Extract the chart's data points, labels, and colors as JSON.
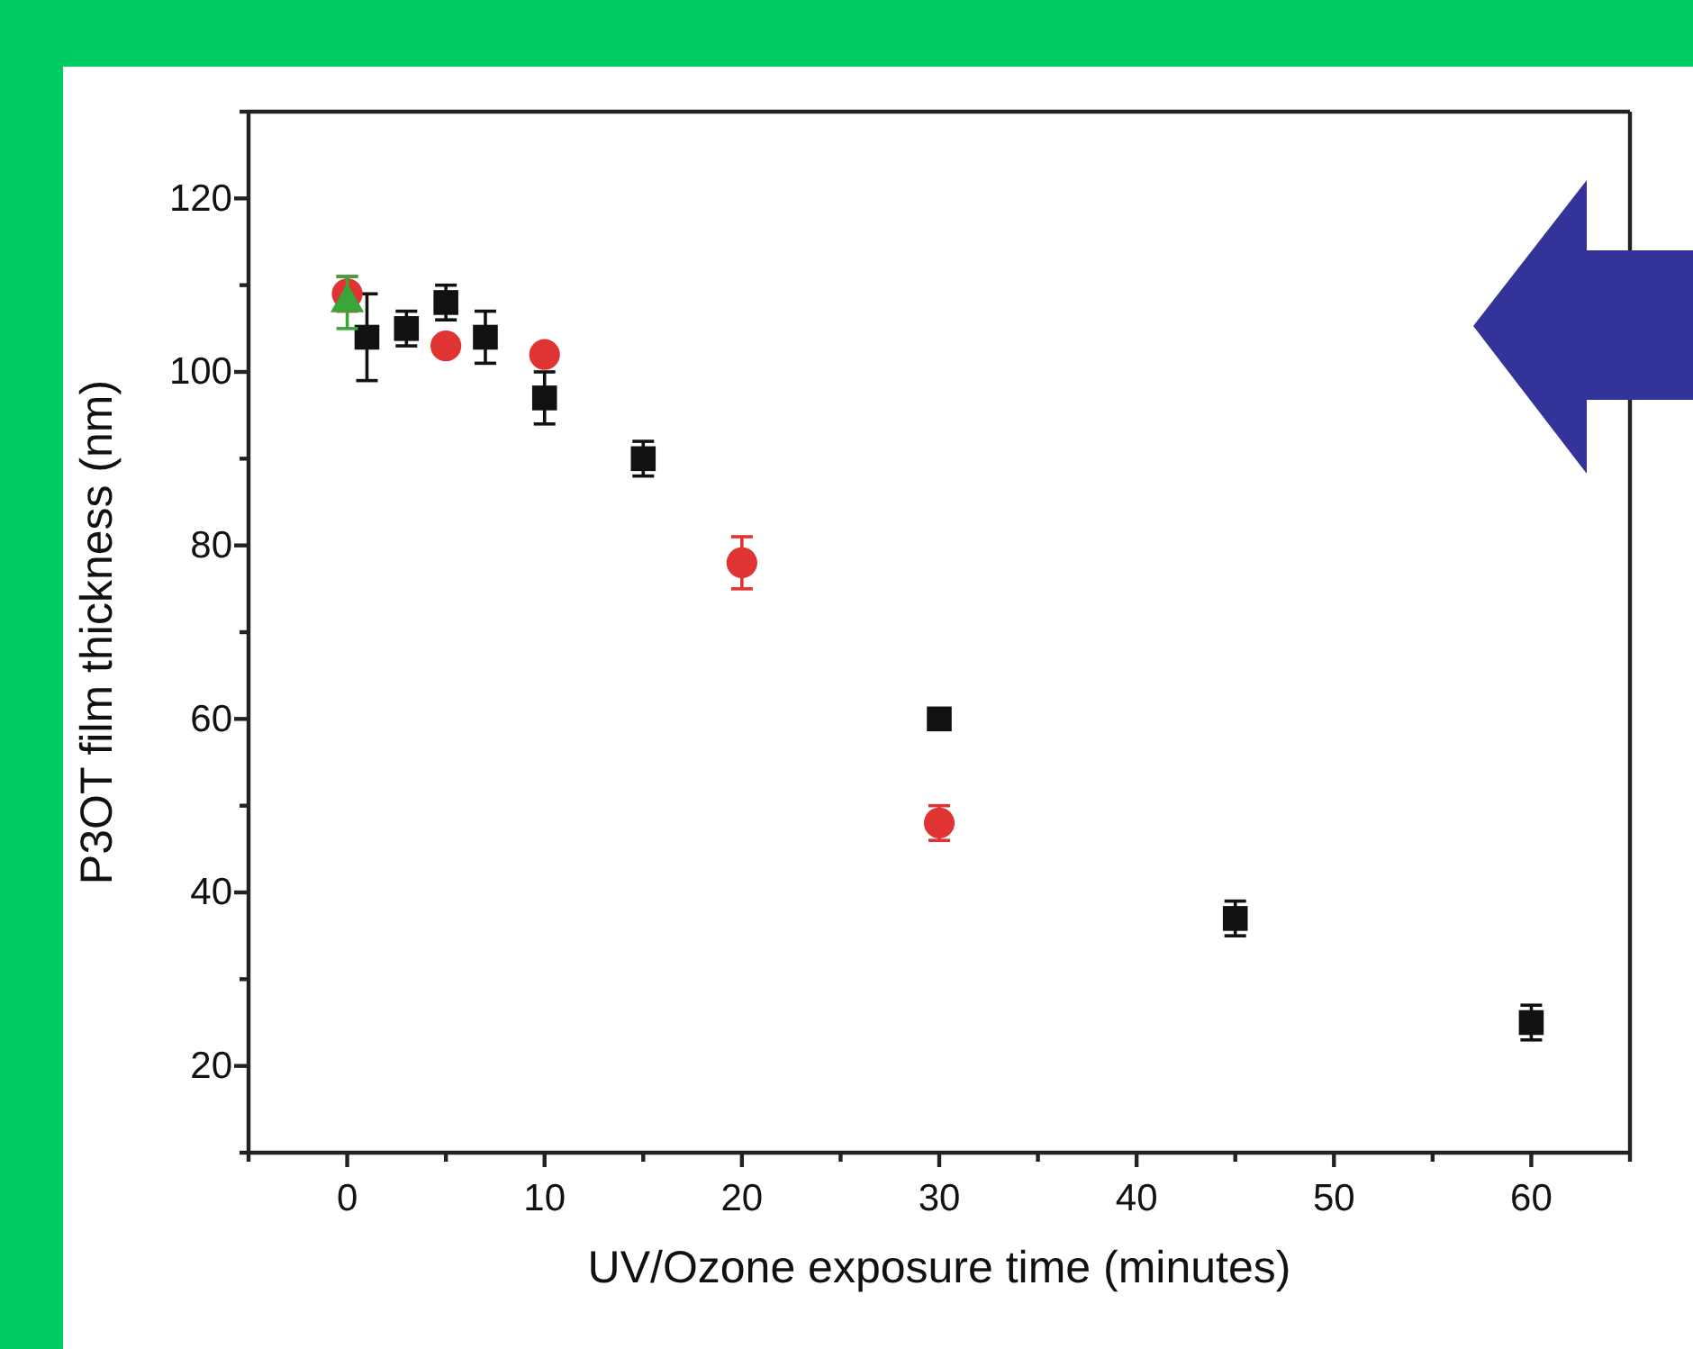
{
  "chart_data": {
    "type": "scatter",
    "xlabel": "UV/Ozone exposure time (minutes)",
    "ylabel": "P3OT film thickness (nm)",
    "xlim": [
      -5,
      65
    ],
    "ylim": [
      10,
      130
    ],
    "xticks": [
      {
        "value": -5,
        "label": null
      },
      0,
      {
        "value": 5,
        "label": null
      },
      10,
      {
        "value": 15,
        "label": null
      },
      20,
      {
        "value": 25,
        "label": null
      },
      30,
      {
        "value": 35,
        "label": null
      },
      40,
      {
        "value": 45,
        "label": null
      },
      50,
      {
        "value": 55,
        "label": null
      },
      60,
      {
        "value": 65,
        "label": null
      }
    ],
    "yticks": [
      {
        "value": 10,
        "label": null
      },
      20,
      {
        "value": 30,
        "label": null
      },
      40,
      {
        "value": 50,
        "label": null
      },
      60,
      {
        "value": 70,
        "label": null
      },
      80,
      {
        "value": 90,
        "label": null
      },
      100,
      {
        "value": 110,
        "label": null
      },
      120,
      {
        "value": 130,
        "label": null
      }
    ],
    "grid": false,
    "series": [
      {
        "color": "#111111",
        "marker": "square",
        "x": [
          1,
          3,
          5,
          7,
          10,
          15,
          30,
          45,
          60
        ],
        "values": [
          104,
          105,
          108,
          104,
          97,
          90,
          60,
          37,
          25
        ],
        "errors": [
          5,
          2,
          2,
          3,
          3,
          2,
          null,
          2,
          2
        ]
      },
      {
        "color": "#e03434",
        "marker": "circle",
        "x": [
          0,
          5,
          10,
          20,
          30
        ],
        "values": [
          109,
          103,
          102,
          78,
          48
        ],
        "errors": [
          2,
          null,
          null,
          3,
          2
        ]
      },
      {
        "color": "#3aa63a",
        "marker": "triangle",
        "x": [
          0
        ],
        "values": [
          108
        ],
        "errors": [
          3
        ]
      }
    ]
  }
}
